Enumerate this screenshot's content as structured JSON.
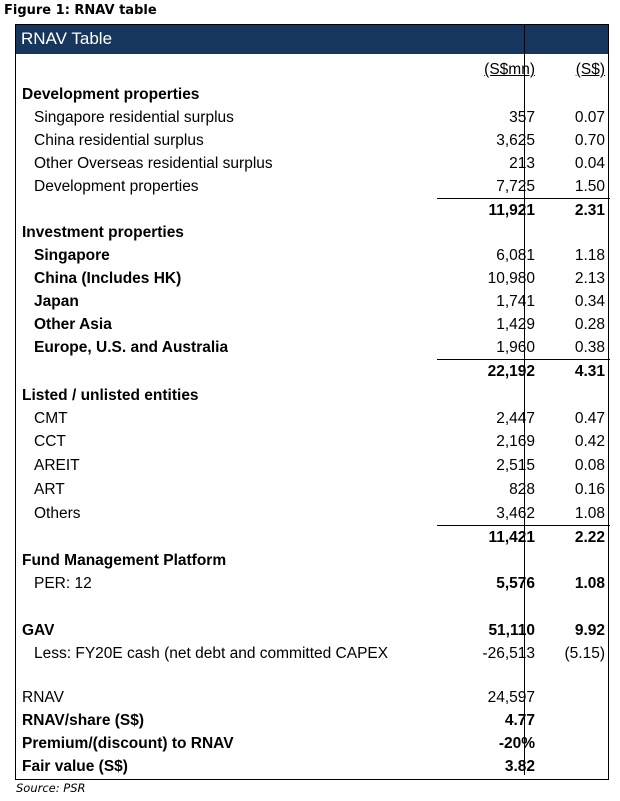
{
  "figure_caption": "Figure 1: RNAV table",
  "table_title": "RNAV Table",
  "col_headers": {
    "value": "(S$mn)",
    "per_share": "(S$)"
  },
  "development": {
    "heading": "Development properties",
    "rows": [
      {
        "label": "Singapore residential surplus",
        "value": "357",
        "per_share": "0.07"
      },
      {
        "label": "China residential surplus",
        "value": "3,625",
        "per_share": "0.70"
      },
      {
        "label": "Other Overseas residential surplus",
        "value": "213",
        "per_share": "0.04"
      },
      {
        "label": "Development properties",
        "value": "7,725",
        "per_share": "1.50"
      }
    ],
    "total": {
      "value": "11,921",
      "per_share": "2.31"
    }
  },
  "investment": {
    "heading": "Investment properties",
    "rows": [
      {
        "label": "Singapore",
        "value": "6,081",
        "per_share": "1.18"
      },
      {
        "label": "China (Includes HK)",
        "value": "10,980",
        "per_share": "2.13"
      },
      {
        "label": "Japan",
        "value": "1,741",
        "per_share": "0.34"
      },
      {
        "label": "Other Asia",
        "value": "1,429",
        "per_share": "0.28"
      },
      {
        "label": "Europe, U.S. and Australia",
        "value": "1,960",
        "per_share": "0.38"
      }
    ],
    "total": {
      "value": "22,192",
      "per_share": "4.31"
    }
  },
  "listed": {
    "heading": "Listed / unlisted entities",
    "rows": [
      {
        "label": "CMT",
        "value": "2,447",
        "per_share": "0.47"
      },
      {
        "label": "CCT",
        "value": "2,169",
        "per_share": "0.42"
      },
      {
        "label": "AREIT",
        "value": "2,515",
        "per_share": "0.08"
      },
      {
        "label": "ART",
        "value": "828",
        "per_share": "0.16"
      },
      {
        "label": "Others",
        "value": "3,462",
        "per_share": "1.08"
      }
    ],
    "total": {
      "value": "11,421",
      "per_share": "2.22"
    }
  },
  "fund": {
    "heading": "Fund Management Platform",
    "row": {
      "label": "PER: 12",
      "value": "5,576",
      "per_share": "1.08"
    }
  },
  "gav": {
    "label": "GAV",
    "value": "51,110",
    "per_share": "9.92"
  },
  "less_cash": {
    "label": "Less: FY20E cash (net debt and committed CAPEX",
    "value": "-26,513",
    "per_share": "(5.15)"
  },
  "rnav": {
    "label": "RNAV",
    "value": "24,597"
  },
  "rnav_share": {
    "label": "RNAV/share (S$)",
    "value": "4.77"
  },
  "premium": {
    "label": "Premium/(discount) to RNAV",
    "value": "-20%"
  },
  "fair_value": {
    "label": "Fair value (S$)",
    "value": "3.82"
  },
  "source": "Source: PSR",
  "colors": {
    "header_bg": "#17365d",
    "header_text": "#ffffff"
  }
}
